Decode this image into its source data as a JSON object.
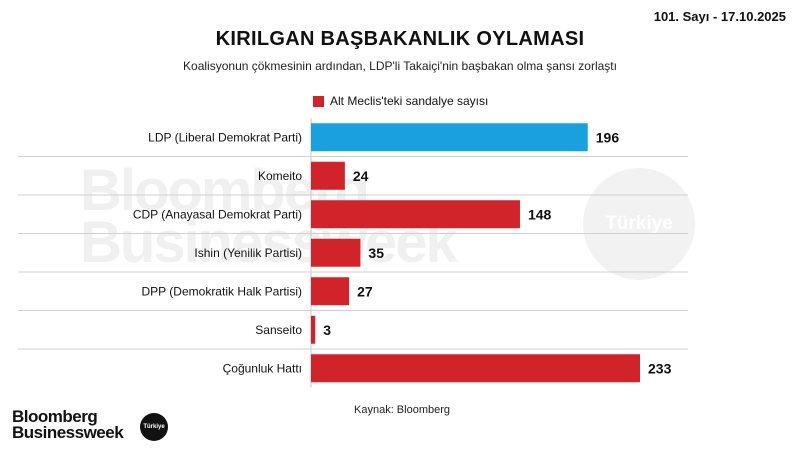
{
  "header": {
    "issue": "101. Sayı - 17.10.2025",
    "title": "KIRILGAN BAŞBAKANLIK OYLAMASI",
    "subtitle": "Koalisyonun çökmesinin ardından, LDP'li Takaiçi'nin başbakan olma şansı zorlaştı"
  },
  "legend": {
    "label": "Alt Meclis'teki sandalye sayısı",
    "color": "#d1232a"
  },
  "chart_data": {
    "type": "bar",
    "orientation": "horizontal",
    "categories": [
      "LDP (Liberal Demokrat Parti)",
      "Komeito",
      "CDP (Anayasal Demokrat Parti)",
      "Ishin (Yenilik Partisi)",
      "DPP (Demokratik Halk Partisi)",
      "Sanseito",
      "Çoğunluk Hattı"
    ],
    "series": [
      {
        "name": "Alt Meclis'teki sandalye sayısı",
        "values": [
          196,
          24,
          148,
          35,
          27,
          3,
          233
        ]
      }
    ],
    "bar_colors": [
      "#1a9fdf",
      "#d1232a",
      "#d1232a",
      "#d1232a",
      "#d1232a",
      "#d1232a",
      "#d1232a"
    ],
    "xlim": [
      0,
      233
    ],
    "data_labels": true,
    "grid": false
  },
  "footer": {
    "source": "Kaynak: Bloomberg",
    "logo_line1": "Bloomberg",
    "logo_line2": "Businessweek",
    "logo_badge": "Türkiye"
  },
  "watermark": {
    "line1": "Bloomberg",
    "line2": "Businessweek",
    "badge": "Türkiye"
  }
}
